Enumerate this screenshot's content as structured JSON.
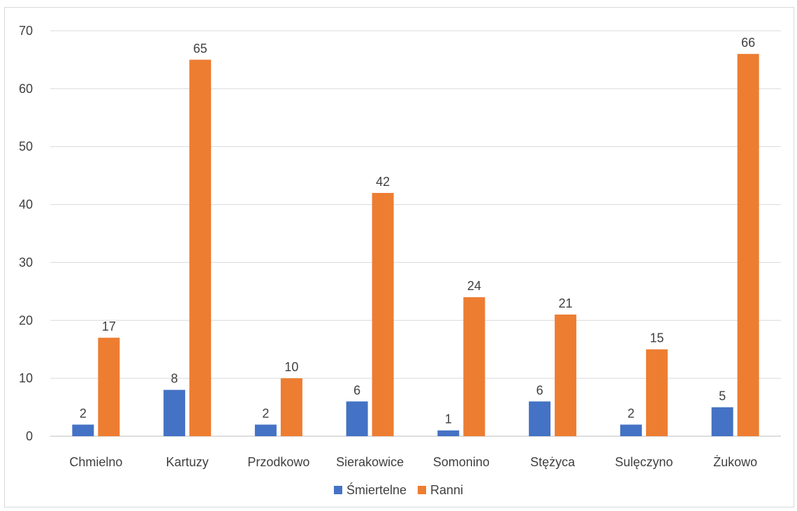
{
  "chart_data": {
    "type": "bar",
    "title": "",
    "xlabel": "",
    "ylabel": "",
    "categories": [
      "Chmielno",
      "Kartuzy",
      "Przodkowo",
      "Sierakowice",
      "Somonino",
      "Stężyca",
      "Sulęczyno",
      "Żukowo"
    ],
    "series": [
      {
        "name": "Śmiertelne",
        "color": "#4472C4",
        "values": [
          2,
          8,
          2,
          6,
          1,
          6,
          2,
          5
        ]
      },
      {
        "name": "Ranni",
        "color": "#ED7D31",
        "values": [
          17,
          65,
          10,
          42,
          24,
          21,
          15,
          66
        ]
      }
    ],
    "ylim": [
      0,
      70
    ],
    "yticks": [
      0,
      10,
      20,
      30,
      40,
      50,
      60,
      70
    ],
    "grid": true,
    "legend_position": "bottom",
    "data_labels": true
  }
}
